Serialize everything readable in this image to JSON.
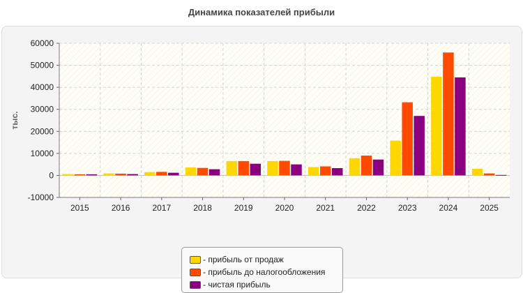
{
  "chart_data": {
    "type": "bar",
    "title": "Динамика показателей прибыли",
    "ylabel": "тыс.",
    "xlabel": "",
    "ylim": [
      -10000,
      60000
    ],
    "yticks": [
      -10000,
      0,
      10000,
      20000,
      30000,
      40000,
      50000,
      60000
    ],
    "grid": true,
    "legend_position": "bottom",
    "categories": [
      "2015",
      "2016",
      "2017",
      "2018",
      "2019",
      "2020",
      "2021",
      "2022",
      "2023",
      "2024",
      "2025"
    ],
    "series": [
      {
        "name": "- прибыль от продаж",
        "color": "#ffd700",
        "values": [
          600,
          900,
          1500,
          3600,
          6500,
          6500,
          3800,
          7800,
          15800,
          44800,
          3000
        ]
      },
      {
        "name": "- прибыль до налогообложения",
        "color": "#ff4a00",
        "values": [
          500,
          800,
          1600,
          3400,
          6500,
          6600,
          4100,
          9000,
          33200,
          55800,
          900
        ]
      },
      {
        "name": "- чистая прибыль",
        "color": "#8b0080",
        "values": [
          500,
          600,
          1200,
          2800,
          5300,
          5000,
          3300,
          7200,
          27000,
          44500,
          200
        ]
      }
    ]
  }
}
